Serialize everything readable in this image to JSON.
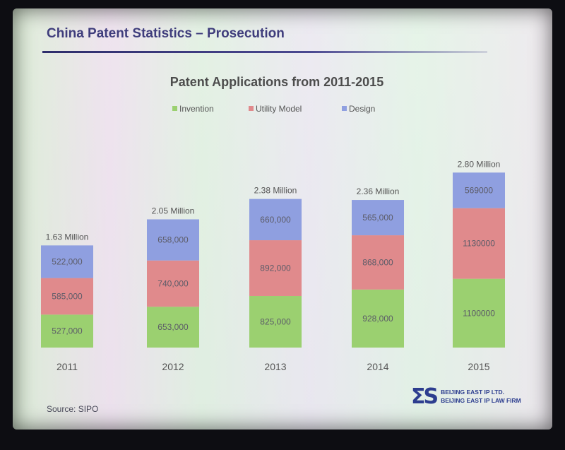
{
  "slide": {
    "title": "China Patent Statistics – Prosecution",
    "source": "Source: SIPO",
    "logo": {
      "mark": "ΣS",
      "line1": "BEIJING EAST IP LTD.",
      "line2": "BEIJING EAST IP LAW FIRM"
    }
  },
  "chart_data": {
    "type": "bar",
    "stacked": true,
    "title": "Patent Applications from 2011-2015",
    "categories": [
      "2011",
      "2012",
      "2013",
      "2014",
      "2015"
    ],
    "totals_labels": [
      "1.63 Million",
      "2.05 Million",
      "2.38 Million",
      "2.36 Million",
      "2.80 Million"
    ],
    "series": [
      {
        "name": "Invention",
        "values": [
          527000,
          653000,
          825000,
          928000,
          1100000
        ],
        "labels": [
          "527,000",
          "653,000",
          "825,000",
          "928,000",
          "1100000"
        ],
        "color": "#9bd070"
      },
      {
        "name": "Utility Model",
        "values": [
          585000,
          740000,
          892000,
          868000,
          1130000
        ],
        "labels": [
          "585,000",
          "740,000",
          "892,000",
          "868,000",
          "1130000"
        ],
        "color": "#e08a8c"
      },
      {
        "name": "Design",
        "values": [
          522000,
          658000,
          660000,
          565000,
          569000
        ],
        "labels": [
          "522,000",
          "658,000",
          "660,000",
          "565,000",
          "569000"
        ],
        "color": "#8f9fe0"
      }
    ],
    "legend_position": "top",
    "grid": false
  }
}
